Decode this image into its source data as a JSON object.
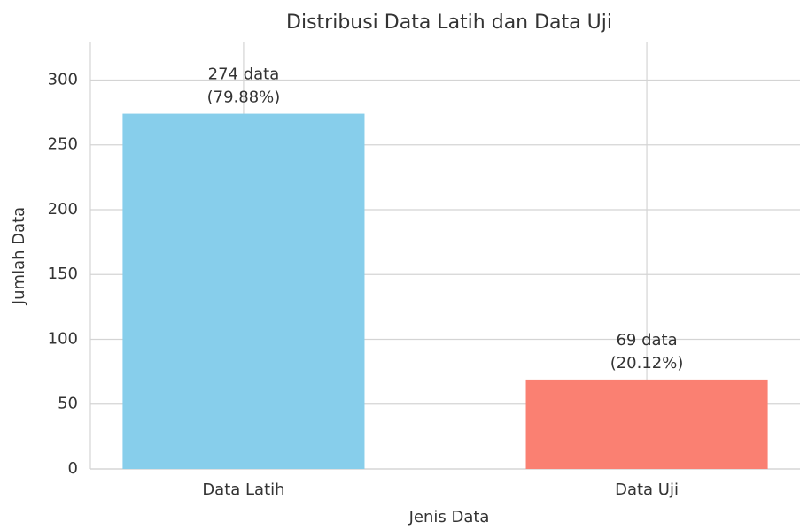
{
  "chart_data": {
    "type": "bar",
    "title": "Distribusi Data Latih dan Data Uji",
    "xlabel": "Jenis Data",
    "ylabel": "Jumlah Data",
    "categories": [
      "Data Latih",
      "Data Uji"
    ],
    "values": [
      274,
      69
    ],
    "value_labels": [
      "274 data",
      "69 data"
    ],
    "percent_labels": [
      "(79.88%)",
      "(20.12%)"
    ],
    "colors": [
      "#87ceeb",
      "#fa8072"
    ],
    "ylim": [
      0,
      329
    ],
    "yticks": [
      0,
      50,
      100,
      150,
      200,
      250,
      300
    ],
    "grid": true
  }
}
